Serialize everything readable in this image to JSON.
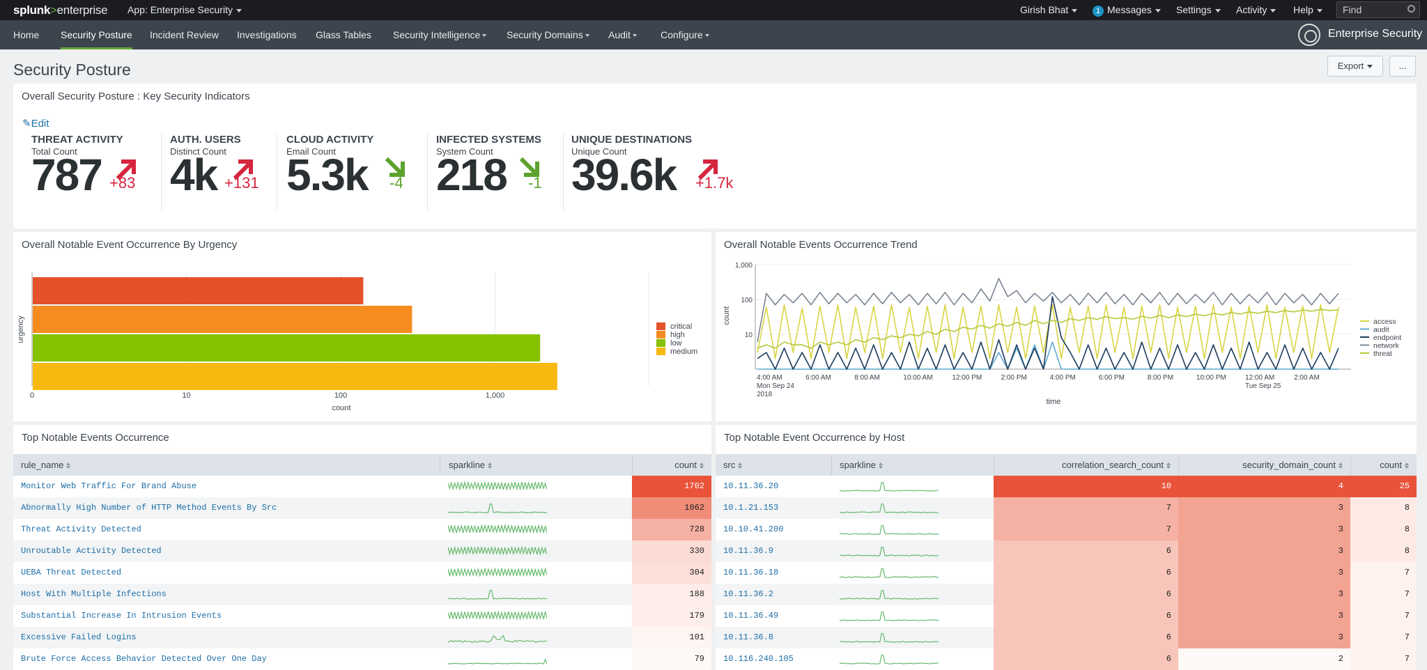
{
  "topbar": {
    "logo_splunk": "splunk",
    "logo_chevron": ">",
    "logo_enterprise": "enterprise",
    "app_label": "App: Enterprise Security",
    "user": "Girish Bhat",
    "messages_count": "1",
    "messages": "Messages",
    "settings": "Settings",
    "activity": "Activity",
    "help": "Help",
    "find_placeholder": "Find"
  },
  "nav": {
    "items": [
      {
        "label": "Home"
      },
      {
        "label": "Security Posture"
      },
      {
        "label": "Incident Review"
      },
      {
        "label": "Investigations"
      },
      {
        "label": "Glass Tables"
      },
      {
        "label": "Security Intelligence"
      },
      {
        "label": "Security Domains"
      },
      {
        "label": "Audit"
      },
      {
        "label": "Configure"
      }
    ],
    "active": "Security Posture",
    "brand": "Enterprise Security"
  },
  "page": {
    "title": "Security Posture",
    "export_label": "Export",
    "more_label": "..."
  },
  "kpi_panel": {
    "title": "Overall Security Posture : Key Security Indicators",
    "edit_label": "Edit",
    "items": [
      {
        "title": "THREAT ACTIVITY",
        "subtitle": "Total Count",
        "value": "787",
        "delta": "+83",
        "trend": "up",
        "color": "#d6253e"
      },
      {
        "title": "AUTH. USERS",
        "subtitle": "Distinct Count",
        "value": "4k",
        "delta": "+131",
        "trend": "up",
        "color": "#d6253e"
      },
      {
        "title": "CLOUD ACTIVITY",
        "subtitle": "Email Count",
        "value": "5.3k",
        "delta": "-4",
        "trend": "down",
        "color": "#5ca32d"
      },
      {
        "title": "INFECTED SYSTEMS",
        "subtitle": "System Count",
        "value": "218",
        "delta": "-1",
        "trend": "down",
        "color": "#5ca32d"
      },
      {
        "title": "UNIQUE DESTINATIONS",
        "subtitle": "Unique Count",
        "value": "39.6k",
        "delta": "+1.7k",
        "trend": "up",
        "color": "#d6253e"
      }
    ]
  },
  "urgency_panel": {
    "title": "Overall Notable Event Occurrence By Urgency",
    "chart_data": {
      "type": "bar",
      "orientation": "horizontal",
      "categories": [
        "critical",
        "high",
        "low",
        "medium"
      ],
      "values": [
        140,
        290,
        1960,
        2530
      ],
      "colors": [
        "#e3522b",
        "#f68b1f",
        "#86c100",
        "#f7b910"
      ],
      "xlabel": "count",
      "ylabel": "urgency",
      "x_scale": "log",
      "x_ticks": [
        "0",
        "10",
        "100",
        "1,000"
      ],
      "legend": "right"
    }
  },
  "trend_panel": {
    "title": "Overall Notable Events Occurrence Trend",
    "chart_data": {
      "type": "line",
      "y_scale": "log",
      "ylabel": "count",
      "xlabel": "time",
      "y_ticks": [
        "10",
        "100",
        "1,000"
      ],
      "x_ticks": [
        "4:00 AM\nMon Sep 24\n2018",
        "6:00 AM",
        "8:00 AM",
        "10:00 AM",
        "12:00 PM",
        "2:00 PM",
        "4:00 PM",
        "6:00 PM",
        "8:00 PM",
        "10:00 PM",
        "12:00 AM\nTue Sep 25",
        "2:00 AM"
      ],
      "legend": "right",
      "series": [
        {
          "name": "access",
          "color": "#d8d442",
          "values": [
            3,
            60,
            2,
            70,
            3,
            55,
            2,
            65,
            3,
            70,
            2,
            60,
            3,
            65,
            2,
            70,
            3,
            60,
            2,
            65,
            3,
            70,
            2,
            60,
            3,
            65,
            2,
            70,
            3,
            60,
            2,
            65,
            3,
            70,
            2,
            60,
            3,
            65,
            2,
            70,
            3,
            60,
            2,
            65,
            3,
            70,
            2,
            60,
            3,
            65,
            2,
            70,
            3,
            60,
            2,
            65,
            3,
            70,
            2,
            60,
            3,
            65,
            2,
            70,
            3,
            60
          ]
        },
        {
          "name": "audit",
          "color": "#5fa8d3",
          "values": [
            1,
            1,
            1,
            1,
            1,
            1,
            1,
            1,
            1,
            1,
            1,
            1,
            1,
            1,
            1,
            1,
            1,
            1,
            1,
            1,
            1,
            1,
            1,
            1,
            1,
            1,
            1,
            3,
            1,
            4,
            1,
            5,
            1,
            6,
            1,
            1,
            1,
            1,
            1,
            1,
            1,
            1,
            1,
            1,
            1,
            1,
            1,
            1,
            1,
            1,
            1,
            1,
            1,
            1,
            1,
            1,
            1,
            1,
            1,
            1,
            1,
            1,
            1,
            1,
            1,
            1
          ]
        },
        {
          "name": "endpoint",
          "color": "#1a3a5c",
          "values": [
            2,
            3,
            1,
            4,
            1,
            3,
            1,
            5,
            1,
            3,
            1,
            4,
            1,
            5,
            1,
            3,
            1,
            6,
            1,
            4,
            1,
            5,
            1,
            3,
            1,
            6,
            1,
            7,
            1,
            5,
            1,
            4,
            1,
            120,
            8,
            3,
            1,
            5,
            1,
            4,
            1,
            3,
            1,
            6,
            1,
            4,
            1,
            5,
            1,
            3,
            1,
            5,
            1,
            4,
            1,
            6,
            1,
            3,
            1,
            5,
            1,
            4,
            1,
            3,
            1,
            4
          ]
        },
        {
          "name": "network",
          "color": "#7a8591",
          "values": [
            6,
            150,
            70,
            140,
            80,
            150,
            70,
            160,
            75,
            150,
            80,
            140,
            70,
            150,
            75,
            160,
            80,
            140,
            70,
            150,
            75,
            160,
            70,
            150,
            80,
            200,
            90,
            400,
            120,
            180,
            80,
            150,
            90,
            160,
            80,
            140,
            70,
            150,
            80,
            160,
            75,
            140,
            70,
            150,
            80,
            160,
            70,
            150,
            75,
            140,
            80,
            160,
            70,
            150,
            75,
            140,
            80,
            160,
            70,
            150,
            80,
            140,
            70,
            150,
            75,
            150
          ]
        },
        {
          "name": "threat",
          "color": "#b6c83a",
          "values": [
            4,
            5,
            4,
            6,
            5,
            5,
            4,
            6,
            5,
            6,
            5,
            7,
            6,
            8,
            7,
            9,
            8,
            10,
            9,
            12,
            10,
            14,
            12,
            16,
            14,
            18,
            15,
            20,
            17,
            22,
            18,
            25,
            20,
            25,
            22,
            28,
            25,
            30,
            27,
            32,
            28,
            30,
            27,
            33,
            29,
            35,
            30,
            36,
            32,
            38,
            34,
            40,
            36,
            42,
            38,
            44,
            40,
            46,
            42,
            48,
            44,
            50,
            46,
            52,
            48,
            50
          ]
        }
      ]
    }
  },
  "top_events": {
    "title": "Top Notable Events Occurrence",
    "columns": [
      "rule_name",
      "sparkline",
      "count"
    ],
    "rows": [
      {
        "rule_name": "Monitor Web Traffic For Brand Abuse",
        "count": "1702",
        "bg": "#e8533a",
        "fg": "#ffffff"
      },
      {
        "rule_name": "Abnormally High Number of HTTP Method Events By Src",
        "count": "1062",
        "bg": "#f08c78",
        "fg": "#222222"
      },
      {
        "rule_name": "Threat Activity Detected",
        "count": "728",
        "bg": "#f5b1a3",
        "fg": "#222222"
      },
      {
        "rule_name": "Unroutable Activity Detected",
        "count": "330",
        "bg": "#fbdcd5",
        "fg": "#222222"
      },
      {
        "rule_name": "UEBA Threat Detected",
        "count": "304",
        "bg": "#fcdfd8",
        "fg": "#222222"
      },
      {
        "rule_name": "Host With Multiple Infections",
        "count": "188",
        "bg": "#fdece8",
        "fg": "#222222"
      },
      {
        "rule_name": "Substantial Increase In Intrusion Events",
        "count": "179",
        "bg": "#fdeee9",
        "fg": "#222222"
      },
      {
        "rule_name": "Excessive Failed Logins",
        "count": "101",
        "bg": "#fef5f3",
        "fg": "#222222"
      },
      {
        "rule_name": "Brute Force Access Behavior Detected Over One Day",
        "count": "79",
        "bg": "#fef8f6",
        "fg": "#222222"
      }
    ]
  },
  "top_hosts": {
    "title": "Top Notable Event Occurrence by Host",
    "columns": [
      "src",
      "sparkline",
      "correlation_search_count",
      "security_domain_count",
      "count"
    ],
    "rows": [
      {
        "src": "10.11.36.20",
        "csc": "10",
        "sdc": "4",
        "count": "25",
        "csc_bg": "#e8533a",
        "sdc_bg": "#e8533a",
        "c_bg": "#e8533a",
        "fg": "#ffffff"
      },
      {
        "src": "10.1.21.153",
        "csc": "7",
        "sdc": "3",
        "count": "8",
        "csc_bg": "#f5b1a3",
        "sdc_bg": "#f3a392",
        "c_bg": "#fdeae5",
        "fg": "#222222"
      },
      {
        "src": "10.10.41.200",
        "csc": "7",
        "sdc": "3",
        "count": "8",
        "csc_bg": "#f5b1a3",
        "sdc_bg": "#f3a392",
        "c_bg": "#fdeae5",
        "fg": "#222222"
      },
      {
        "src": "10.11.36.9",
        "csc": "6",
        "sdc": "3",
        "count": "8",
        "csc_bg": "#f8c5ba",
        "sdc_bg": "#f3a392",
        "c_bg": "#fdeae5",
        "fg": "#222222"
      },
      {
        "src": "10.11.36.18",
        "csc": "6",
        "sdc": "3",
        "count": "7",
        "csc_bg": "#f8c5ba",
        "sdc_bg": "#f3a392",
        "c_bg": "#fef2ef",
        "fg": "#222222"
      },
      {
        "src": "10.11.36.2",
        "csc": "6",
        "sdc": "3",
        "count": "7",
        "csc_bg": "#f8c5ba",
        "sdc_bg": "#f3a392",
        "c_bg": "#fef2ef",
        "fg": "#222222"
      },
      {
        "src": "10.11.36.49",
        "csc": "6",
        "sdc": "3",
        "count": "7",
        "csc_bg": "#f8c5ba",
        "sdc_bg": "#f3a392",
        "c_bg": "#fef2ef",
        "fg": "#222222"
      },
      {
        "src": "10.11.36.8",
        "csc": "6",
        "sdc": "3",
        "count": "7",
        "csc_bg": "#f8c5ba",
        "sdc_bg": "#f3a392",
        "c_bg": "#fef2ef",
        "fg": "#222222"
      },
      {
        "src": "10.116.240.105",
        "csc": "6",
        "sdc": "2",
        "count": "7",
        "csc_bg": "#f8c5ba",
        "sdc_bg": "#fef8f6",
        "c_bg": "#fef2ef",
        "fg": "#222222"
      }
    ]
  },
  "sparkline_color": "#65b96b"
}
